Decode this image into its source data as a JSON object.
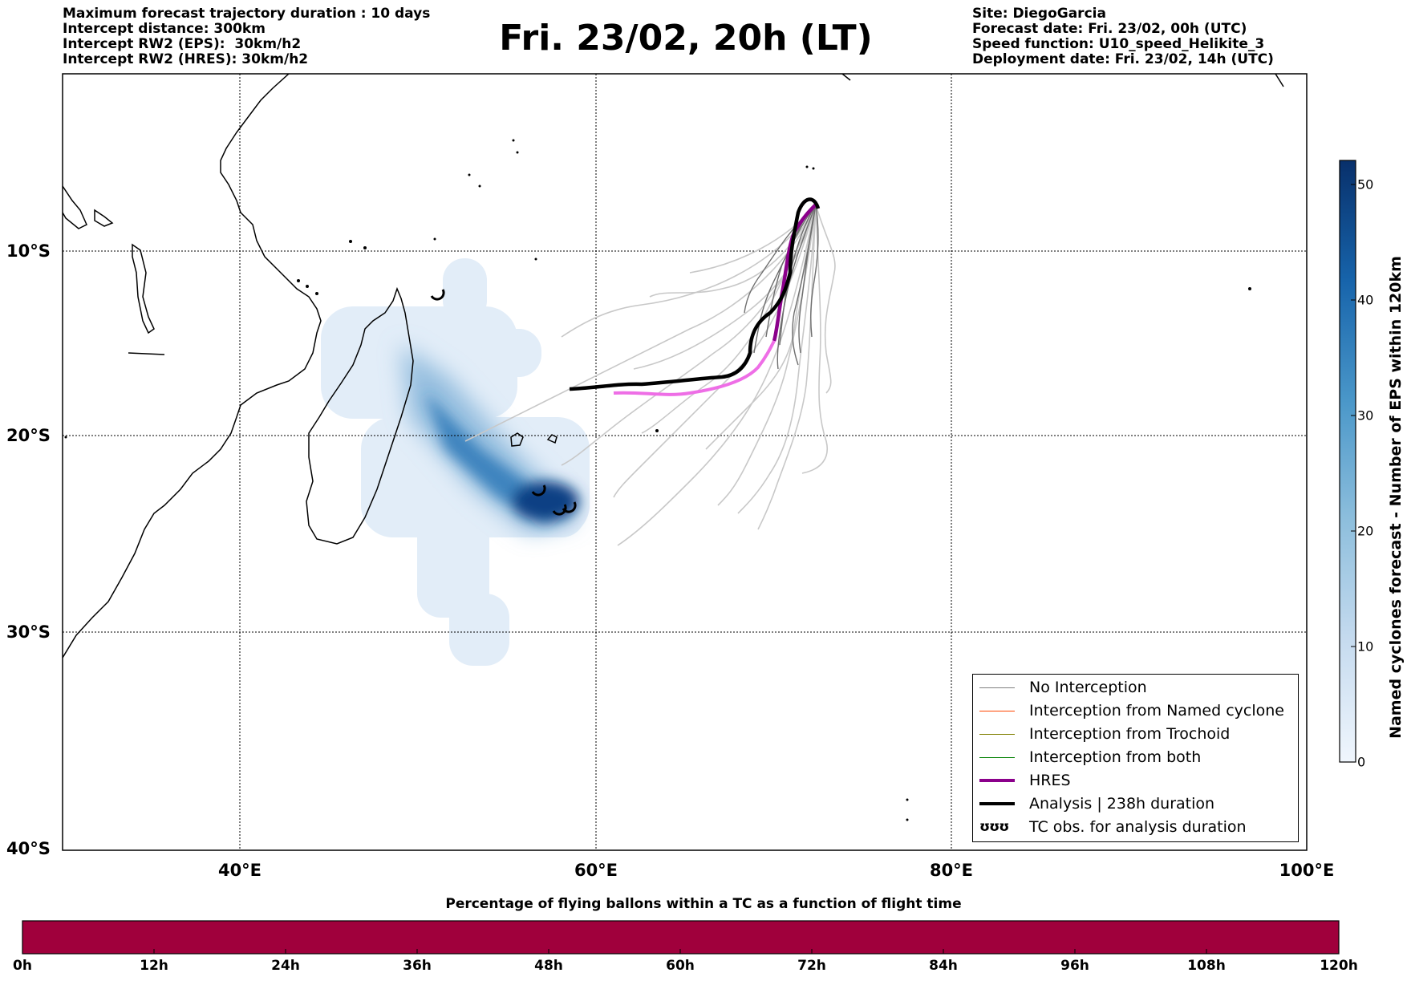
{
  "header": {
    "left": [
      "Maximum forecast trajectory duration : 10 days",
      "Intercept distance: 300km",
      "Intercept RW2 (EPS):  30km/h2",
      "Intercept RW2 (HRES): 30km/h2"
    ],
    "title": "Fri. 23/02, 20h (LT)",
    "right": [
      "Site: DiegoGarcia",
      "Forecast date: Fri. 23/02, 00h (UTC)",
      "Speed function: U10_speed_Helikite_3",
      "Deployment date: Fri. 23/02, 14h (UTC)"
    ]
  },
  "map": {
    "lon_ticks": [
      "40°E",
      "60°E",
      "80°E",
      "100°E"
    ],
    "lat_ticks": [
      "10°S",
      "20°S",
      "30°S",
      "40°S"
    ]
  },
  "legend": {
    "items": [
      {
        "label": "No Interception",
        "color": "#808080"
      },
      {
        "label": "Interception from Named cyclone",
        "color": "#ff4500"
      },
      {
        "label": "Interception from Trochoid",
        "color": "#808000"
      },
      {
        "label": "Interception from both",
        "color": "#008000"
      },
      {
        "label": "HRES",
        "color": "#8b008b"
      },
      {
        "label": "Analysis | 238h duration",
        "color": "#000000"
      }
    ],
    "obs_symbol": "ʊʊʊ",
    "obs_label": "TC obs. for analysis duration"
  },
  "colorbar": {
    "label": "Named cyclones forecast - Number of EPS within 120km",
    "ticks": [
      "0",
      "10",
      "20",
      "30",
      "40",
      "50"
    ]
  },
  "bottom_bar": {
    "title": "Percentage of flying ballons within a TC as a function of flight time",
    "color": "#a0003c",
    "ticks": [
      "0h",
      "12h",
      "24h",
      "36h",
      "48h",
      "60h",
      "72h",
      "84h",
      "96h",
      "108h",
      "120h"
    ]
  }
}
